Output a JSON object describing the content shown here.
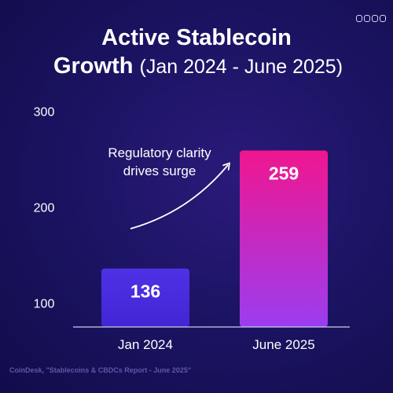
{
  "title_line1": "Active Stablecoin",
  "title_line2_bold": "Growth",
  "title_line2_light": "(Jan 2024 - June 2025)",
  "annotation_line1": "Regulatory clarity",
  "annotation_line2": "drives surge",
  "source": "CoinDesk, \"Stablecoins & CBDCs Report - June 2025\"",
  "logo_icon": "brand-logo-icon",
  "colors": {
    "background": "#1c1464",
    "bar_jan": "#4b2ee0",
    "bar_june_top": "#f0168f",
    "bar_june_bottom": "#9b3df0",
    "text": "#ffffff"
  },
  "chart_data": {
    "type": "bar",
    "categories": [
      "Jan 2024",
      "June 2025"
    ],
    "values": [
      136,
      259
    ],
    "data_labels": [
      "136",
      "259"
    ],
    "yticks": [
      100,
      200,
      300
    ],
    "ytick_labels": [
      "100",
      "200",
      "300"
    ],
    "ylim": [
      75,
      325
    ],
    "grid": false,
    "legend": "none"
  }
}
